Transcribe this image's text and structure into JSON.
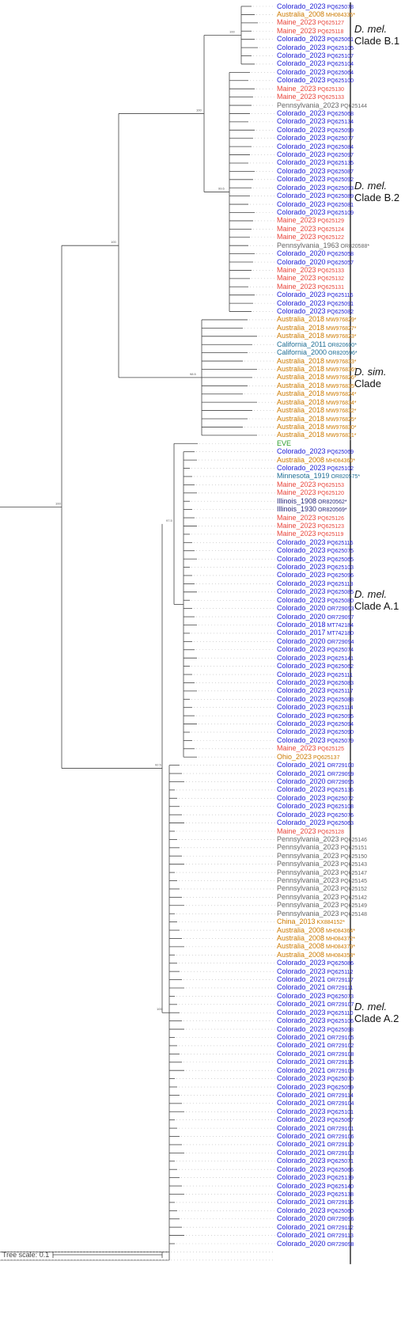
{
  "leaf_colors": {
    "blue": "#1f1fd6",
    "red": "#e8463c",
    "gray": "#666666",
    "orange": "#cc7a00",
    "teal": "#1f6e94",
    "green": "#2a9d2a",
    "navy": "#2a2a7a",
    "black": "#222222"
  },
  "leaves": [
    {
      "name": "Colorado_2023",
      "acc": "PQ625078",
      "color": "blue"
    },
    {
      "name": "Australia_2008",
      "acc": "MH084335*",
      "color": "orange"
    },
    {
      "name": "Maine_2023",
      "acc": "PQ625127",
      "color": "red"
    },
    {
      "name": "Maine_2023",
      "acc": "PQ625118",
      "color": "red"
    },
    {
      "name": "Colorado_2023",
      "acc": "PQ625061",
      "color": "blue"
    },
    {
      "name": "Colorado_2023",
      "acc": "PQ625105",
      "color": "blue"
    },
    {
      "name": "Colorado_2023",
      "acc": "PQ625107",
      "color": "blue"
    },
    {
      "name": "Colorado_2023",
      "acc": "PQ625104",
      "color": "blue"
    },
    {
      "name": "Colorado_2023",
      "acc": "PQ625064",
      "color": "blue"
    },
    {
      "name": "Colorado_2023",
      "acc": "PQ625100",
      "color": "blue"
    },
    {
      "name": "Maine_2023",
      "acc": "PQ625130",
      "color": "red"
    },
    {
      "name": "Maine_2023",
      "acc": "PQ625133",
      "color": "red"
    },
    {
      "name": "Pennsylvania_2023",
      "acc": "PQ625144",
      "color": "gray"
    },
    {
      "name": "Colorado_2023",
      "acc": "PQ625068",
      "color": "blue"
    },
    {
      "name": "Colorado_2023",
      "acc": "PQ625134",
      "color": "blue"
    },
    {
      "name": "Colorado_2023",
      "acc": "PQ625099",
      "color": "blue"
    },
    {
      "name": "Colorado_2023",
      "acc": "PQ625077",
      "color": "blue"
    },
    {
      "name": "Colorado_2023",
      "acc": "PQ625084",
      "color": "blue"
    },
    {
      "name": "Colorado_2023",
      "acc": "PQ625097",
      "color": "blue"
    },
    {
      "name": "Colorado_2023",
      "acc": "PQ625135",
      "color": "blue"
    },
    {
      "name": "Colorado_2023",
      "acc": "PQ625087",
      "color": "blue"
    },
    {
      "name": "Colorado_2023",
      "acc": "PQ625092",
      "color": "blue"
    },
    {
      "name": "Colorado_2023",
      "acc": "PQ625093",
      "color": "blue"
    },
    {
      "name": "Colorado_2023",
      "acc": "PQ625089",
      "color": "blue"
    },
    {
      "name": "Colorado_2023",
      "acc": "PQ625081",
      "color": "blue"
    },
    {
      "name": "Colorado_2023",
      "acc": "PQ625109",
      "color": "blue"
    },
    {
      "name": "Maine_2023",
      "acc": "PQ625129",
      "color": "red"
    },
    {
      "name": "Maine_2023",
      "acc": "PQ625124",
      "color": "red"
    },
    {
      "name": "Maine_2023",
      "acc": "PQ625122",
      "color": "red"
    },
    {
      "name": "Pennsylvania_1963",
      "acc": "OR820588*",
      "color": "gray"
    },
    {
      "name": "Colorado_2020",
      "acc": "PQ625058",
      "color": "blue"
    },
    {
      "name": "Colorado_2020",
      "acc": "PQ625057",
      "color": "blue"
    },
    {
      "name": "Maine_2023",
      "acc": "PQ625133",
      "color": "red"
    },
    {
      "name": "Maine_2023",
      "acc": "PQ625132",
      "color": "red"
    },
    {
      "name": "Maine_2023",
      "acc": "PQ625131",
      "color": "red"
    },
    {
      "name": "Colorado_2023",
      "acc": "PQ625116",
      "color": "blue"
    },
    {
      "name": "Colorado_2023",
      "acc": "PQ625091",
      "color": "blue"
    },
    {
      "name": "Colorado_2023",
      "acc": "PQ625082",
      "color": "blue"
    },
    {
      "name": "Australia_2018",
      "acc": "MW976829*",
      "color": "orange"
    },
    {
      "name": "Australia_2018",
      "acc": "MW976827*",
      "color": "orange"
    },
    {
      "name": "Australia_2018",
      "acc": "MW976823*",
      "color": "orange"
    },
    {
      "name": "California_2011",
      "acc": "OR820600*",
      "color": "teal"
    },
    {
      "name": "California_2000",
      "acc": "OR820596*",
      "color": "teal"
    },
    {
      "name": "Australia_2018",
      "acc": "MW976833*",
      "color": "orange"
    },
    {
      "name": "Australia_2018",
      "acc": "MW976836*",
      "color": "orange"
    },
    {
      "name": "Australia_2018",
      "acc": "MW976826*",
      "color": "orange"
    },
    {
      "name": "Australia_2018",
      "acc": "MW976835*",
      "color": "orange"
    },
    {
      "name": "Australia_2018",
      "acc": "MW976824*",
      "color": "orange"
    },
    {
      "name": "Australia_2018",
      "acc": "MW976834*",
      "color": "orange"
    },
    {
      "name": "Australia_2018",
      "acc": "MW976832*",
      "color": "orange"
    },
    {
      "name": "Australia_2018",
      "acc": "MW976825*",
      "color": "orange"
    },
    {
      "name": "Australia_2018",
      "acc": "MW976830*",
      "color": "orange"
    },
    {
      "name": "Australia_2018",
      "acc": "MW976831*",
      "color": "orange"
    },
    {
      "name": "EVE",
      "acc": "",
      "color": "green"
    },
    {
      "name": "Colorado_2023",
      "acc": "PQ625069",
      "color": "blue"
    },
    {
      "name": "Australia_2008",
      "acc": "MH084360*",
      "color": "orange"
    },
    {
      "name": "Colorado_2023",
      "acc": "PQ625102",
      "color": "blue"
    },
    {
      "name": "Minnesota_1919",
      "acc": "OR820575*",
      "color": "teal"
    },
    {
      "name": "Maine_2023",
      "acc": "PQ625153",
      "color": "red"
    },
    {
      "name": "Maine_2023",
      "acc": "PQ625120",
      "color": "red"
    },
    {
      "name": "Illinois_1908",
      "acc": "OR820562*",
      "color": "navy"
    },
    {
      "name": "Illinois_1930",
      "acc": "OR820569*",
      "color": "navy"
    },
    {
      "name": "Maine_2023",
      "acc": "PQ625126",
      "color": "red"
    },
    {
      "name": "Maine_2023",
      "acc": "PQ625123",
      "color": "red"
    },
    {
      "name": "Maine_2023",
      "acc": "PQ625119",
      "color": "red"
    },
    {
      "name": "Colorado_2023",
      "acc": "PQ625115",
      "color": "blue"
    },
    {
      "name": "Colorado_2023",
      "acc": "PQ625075",
      "color": "blue"
    },
    {
      "name": "Colorado_2023",
      "acc": "PQ625065",
      "color": "blue"
    },
    {
      "name": "Colorado_2023",
      "acc": "PQ625103",
      "color": "blue"
    },
    {
      "name": "Colorado_2023",
      "acc": "PQ625096",
      "color": "blue"
    },
    {
      "name": "Colorado_2023",
      "acc": "PQ625113",
      "color": "blue"
    },
    {
      "name": "Colorado_2023",
      "acc": "PQ625085",
      "color": "blue"
    },
    {
      "name": "Colorado_2023",
      "acc": "PQ625080",
      "color": "blue"
    },
    {
      "name": "Colorado_2020",
      "acc": "OR729093",
      "color": "blue"
    },
    {
      "name": "Colorado_2020",
      "acc": "OR729097",
      "color": "blue"
    },
    {
      "name": "Colorado_2018",
      "acc": "MT742184",
      "color": "blue"
    },
    {
      "name": "Colorado_2017",
      "acc": "MT742180",
      "color": "blue"
    },
    {
      "name": "Colorado_2020",
      "acc": "OR729094",
      "color": "blue"
    },
    {
      "name": "Colorado_2023",
      "acc": "PQ625074",
      "color": "blue"
    },
    {
      "name": "Colorado_2023",
      "acc": "PQ625141",
      "color": "blue"
    },
    {
      "name": "Colorado_2023",
      "acc": "PQ625062",
      "color": "blue"
    },
    {
      "name": "Colorado_2023",
      "acc": "PQ625111",
      "color": "blue"
    },
    {
      "name": "Colorado_2023",
      "acc": "PQ625083",
      "color": "blue"
    },
    {
      "name": "Colorado_2023",
      "acc": "PQ625117",
      "color": "blue"
    },
    {
      "name": "Colorado_2023",
      "acc": "PQ625088",
      "color": "blue"
    },
    {
      "name": "Colorado_2023",
      "acc": "PQ625114",
      "color": "blue"
    },
    {
      "name": "Colorado_2023",
      "acc": "PQ625095",
      "color": "blue"
    },
    {
      "name": "Colorado_2023",
      "acc": "PQ625094",
      "color": "blue"
    },
    {
      "name": "Colorado_2023",
      "acc": "PQ625090",
      "color": "blue"
    },
    {
      "name": "Colorado_2023",
      "acc": "PQ625079",
      "color": "blue"
    },
    {
      "name": "Maine_2023",
      "acc": "PQ625125",
      "color": "red"
    },
    {
      "name": "Ohio_2023",
      "acc": "PQ625137",
      "color": "orange"
    },
    {
      "name": "Colorado_2021",
      "acc": "OR729100",
      "color": "blue"
    },
    {
      "name": "Colorado_2021",
      "acc": "OR729099",
      "color": "blue"
    },
    {
      "name": "Colorado_2020",
      "acc": "OR729095",
      "color": "blue"
    },
    {
      "name": "Colorado_2023",
      "acc": "PQ625136",
      "color": "blue"
    },
    {
      "name": "Colorado_2023",
      "acc": "PQ625072",
      "color": "blue"
    },
    {
      "name": "Colorado_2023",
      "acc": "PQ625108",
      "color": "blue"
    },
    {
      "name": "Colorado_2023",
      "acc": "PQ625076",
      "color": "blue"
    },
    {
      "name": "Colorado_2023",
      "acc": "PQ625063",
      "color": "blue"
    },
    {
      "name": "Maine_2023",
      "acc": "PQ625128",
      "color": "red"
    },
    {
      "name": "Pennsylvania_2023",
      "acc": "PQ625146",
      "color": "gray"
    },
    {
      "name": "Pennsylvania_2023",
      "acc": "PQ625151",
      "color": "gray"
    },
    {
      "name": "Pennsylvania_2023",
      "acc": "PQ625150",
      "color": "gray"
    },
    {
      "name": "Pennsylvania_2023",
      "acc": "PQ625143",
      "color": "gray"
    },
    {
      "name": "Pennsylvania_2023",
      "acc": "PQ625147",
      "color": "gray"
    },
    {
      "name": "Pennsylvania_2023",
      "acc": "PQ625145",
      "color": "gray"
    },
    {
      "name": "Pennsylvania_2023",
      "acc": "PQ625152",
      "color": "gray"
    },
    {
      "name": "Pennsylvania_2023",
      "acc": "PQ625142",
      "color": "gray"
    },
    {
      "name": "Pennsylvania_2023",
      "acc": "PQ625149",
      "color": "gray"
    },
    {
      "name": "Pennsylvania_2023",
      "acc": "PQ625148",
      "color": "gray"
    },
    {
      "name": "China_2013",
      "acc": "KX884152*",
      "color": "orange"
    },
    {
      "name": "Australia_2008",
      "acc": "MH084364*",
      "color": "orange"
    },
    {
      "name": "Australia_2008",
      "acc": "MH084372*",
      "color": "orange"
    },
    {
      "name": "Australia_2008",
      "acc": "MH084379*",
      "color": "orange"
    },
    {
      "name": "Australia_2008",
      "acc": "MH084353*",
      "color": "orange"
    },
    {
      "name": "Colorado_2023",
      "acc": "PQ625086",
      "color": "blue"
    },
    {
      "name": "Colorado_2023",
      "acc": "PQ625112",
      "color": "blue"
    },
    {
      "name": "Colorado_2021",
      "acc": "OR729117",
      "color": "blue"
    },
    {
      "name": "Colorado_2021",
      "acc": "OR729111",
      "color": "blue"
    },
    {
      "name": "Colorado_2023",
      "acc": "PQ625073",
      "color": "blue"
    },
    {
      "name": "Colorado_2021",
      "acc": "OR729107",
      "color": "blue"
    },
    {
      "name": "Colorado_2023",
      "acc": "PQ625110",
      "color": "blue"
    },
    {
      "name": "Colorado_2023",
      "acc": "PQ625106",
      "color": "blue"
    },
    {
      "name": "Colorado_2023",
      "acc": "PQ625098",
      "color": "blue"
    },
    {
      "name": "Colorado_2021",
      "acc": "OR729105",
      "color": "blue"
    },
    {
      "name": "Colorado_2021",
      "acc": "OR729102",
      "color": "blue"
    },
    {
      "name": "Colorado_2021",
      "acc": "OR729108",
      "color": "blue"
    },
    {
      "name": "Colorado_2021",
      "acc": "OR729115",
      "color": "blue"
    },
    {
      "name": "Colorado_2021",
      "acc": "OR729109",
      "color": "blue"
    },
    {
      "name": "Colorado_2023",
      "acc": "PQ625070",
      "color": "blue"
    },
    {
      "name": "Colorado_2023",
      "acc": "PQ625059",
      "color": "blue"
    },
    {
      "name": "Colorado_2021",
      "acc": "OR729114",
      "color": "blue"
    },
    {
      "name": "Colorado_2021",
      "acc": "OR729104",
      "color": "blue"
    },
    {
      "name": "Colorado_2023",
      "acc": "PQ625101",
      "color": "blue"
    },
    {
      "name": "Colorado_2023",
      "acc": "PQ625067",
      "color": "blue"
    },
    {
      "name": "Colorado_2021",
      "acc": "OR729101",
      "color": "blue"
    },
    {
      "name": "Colorado_2021",
      "acc": "OR729106",
      "color": "blue"
    },
    {
      "name": "Colorado_2021",
      "acc": "OR729110",
      "color": "blue"
    },
    {
      "name": "Colorado_2021",
      "acc": "OR729103",
      "color": "blue"
    },
    {
      "name": "Colorado_2023",
      "acc": "PQ625071",
      "color": "blue"
    },
    {
      "name": "Colorado_2023",
      "acc": "PQ625066",
      "color": "blue"
    },
    {
      "name": "Colorado_2023",
      "acc": "PQ625139",
      "color": "blue"
    },
    {
      "name": "Colorado_2023",
      "acc": "PQ625140",
      "color": "blue"
    },
    {
      "name": "Colorado_2023",
      "acc": "PQ625138",
      "color": "blue"
    },
    {
      "name": "Colorado_2021",
      "acc": "OR729116",
      "color": "blue"
    },
    {
      "name": "Colorado_2023",
      "acc": "PQ625060",
      "color": "blue"
    },
    {
      "name": "Colorado_2020",
      "acc": "OR729096",
      "color": "blue"
    },
    {
      "name": "Colorado_2021",
      "acc": "OR729112",
      "color": "blue"
    },
    {
      "name": "Colorado_2021",
      "acc": "OR729113",
      "color": "blue"
    },
    {
      "name": "Colorado_2020",
      "acc": "OR729098",
      "color": "blue"
    }
  ],
  "clades": [
    {
      "species": "D. mel.",
      "clade": "Clade B.1",
      "first": 0,
      "last": 7
    },
    {
      "species": "D. mel.",
      "clade": "Clade B.2",
      "first": 8,
      "last": 37
    },
    {
      "species": "D. sim.",
      "clade": "Clade",
      "first": 38,
      "last": 52
    },
    {
      "species": "D. mel.",
      "clade": "Clade A.1",
      "first": 53,
      "last": 91
    },
    {
      "species": "D. mel.",
      "clade": "Clade A.2",
      "first": 92,
      "last": 152
    }
  ],
  "bootstrap_labels": [
    "100",
    "100",
    "100",
    "99.6",
    "98.5",
    "92.5",
    "97.5",
    "100",
    "100"
  ],
  "scale": {
    "label": "Tree scale:",
    "value": "0.1"
  }
}
